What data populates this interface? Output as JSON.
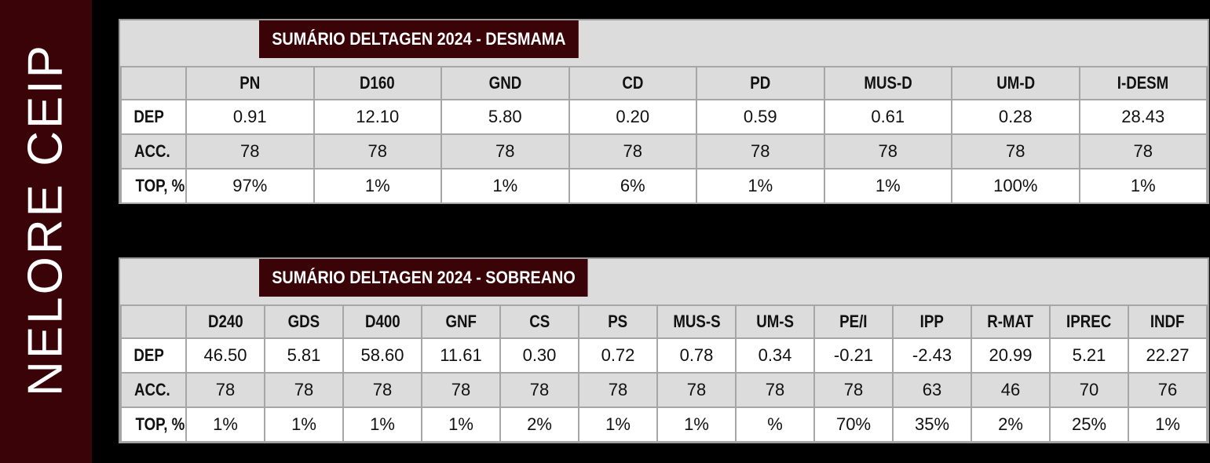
{
  "sidebar": {
    "title": "NELORE CEIP"
  },
  "desmama": {
    "title": "SUMÁRIO DELTAGEN 2024 - DESMAMA",
    "columns": [
      "PN",
      "D160",
      "GND",
      "CD",
      "PD",
      "MUS-D",
      "UM-D",
      "I-DESM"
    ],
    "rows": [
      {
        "label": "DEP",
        "values": [
          "0.91",
          "12.10",
          "5.80",
          "0.20",
          "0.59",
          "0.61",
          "0.28",
          "28.43"
        ]
      },
      {
        "label": "ACC.",
        "values": [
          "78",
          "78",
          "78",
          "78",
          "78",
          "78",
          "78",
          "78"
        ]
      },
      {
        "label": "TOP, %",
        "values": [
          "97%",
          "1%",
          "1%",
          "6%",
          "1%",
          "1%",
          "100%",
          "1%"
        ]
      }
    ]
  },
  "sobreano": {
    "title": "SUMÁRIO DELTAGEN 2024 - SOBREANO",
    "columns": [
      "D240",
      "GDS",
      "D400",
      "GNF",
      "CS",
      "PS",
      "MUS-S",
      "UM-S",
      "PE/I",
      "IPP",
      "R-MAT",
      "IPREC",
      "INDF"
    ],
    "rows": [
      {
        "label": "DEP",
        "values": [
          "46.50",
          "5.81",
          "58.60",
          "11.61",
          "0.30",
          "0.72",
          "0.78",
          "0.34",
          "-0.21",
          "-2.43",
          "20.99",
          "5.21",
          "22.27"
        ]
      },
      {
        "label": "ACC.",
        "values": [
          "78",
          "78",
          "78",
          "78",
          "78",
          "78",
          "78",
          "78",
          "78",
          "63",
          "46",
          "70",
          "76"
        ]
      },
      {
        "label": "TOP, %",
        "values": [
          "1%",
          "1%",
          "1%",
          "1%",
          "2%",
          "1%",
          "1%",
          "%",
          "70%",
          "35%",
          "2%",
          "25%",
          "1%"
        ]
      }
    ]
  }
}
